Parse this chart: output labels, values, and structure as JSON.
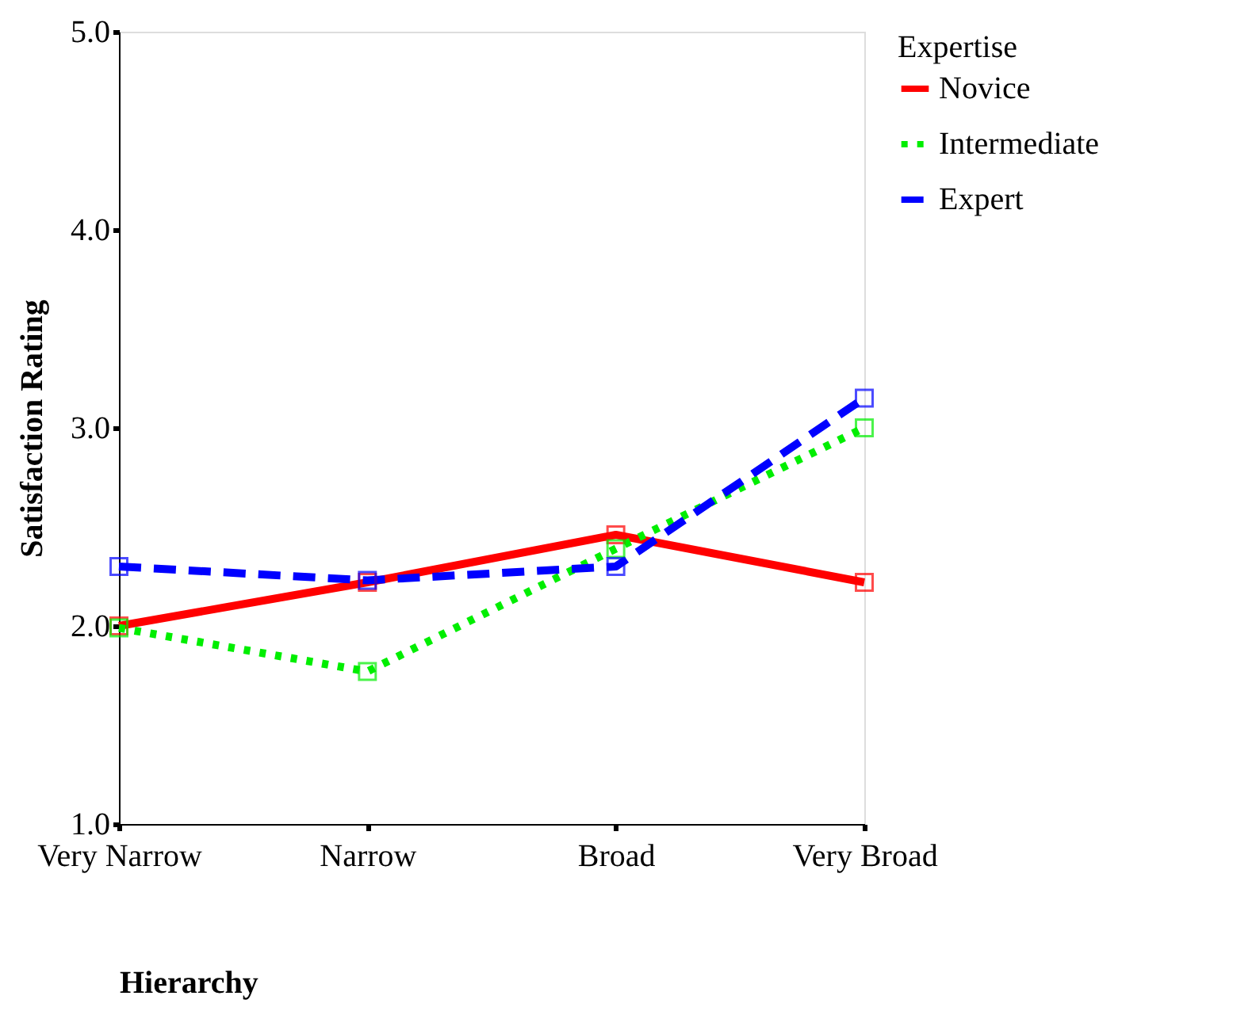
{
  "chart_data": {
    "type": "line",
    "xlabel": "Hierarchy",
    "ylabel": "Satisfaction Rating",
    "legend_title": "Expertise",
    "categories": [
      "Very Narrow",
      "Narrow",
      "Broad",
      "Very Broad"
    ],
    "series": [
      {
        "name": "Novice",
        "color": "#ff0000",
        "line_style": "solid",
        "values": [
          2.0,
          2.22,
          2.46,
          2.22
        ]
      },
      {
        "name": "Intermediate",
        "color": "#00ee00",
        "line_style": "dotted",
        "values": [
          1.99,
          1.77,
          2.39,
          3.0
        ]
      },
      {
        "name": "Expert",
        "color": "#0000ff",
        "line_style": "dashed",
        "values": [
          2.3,
          2.23,
          2.3,
          3.15
        ]
      }
    ],
    "ylim": [
      1.0,
      5.0
    ],
    "yticks": [
      {
        "value": 1,
        "label": "1.0"
      },
      {
        "value": 2,
        "label": "2.0"
      },
      {
        "value": 3,
        "label": "3.0"
      },
      {
        "value": 4,
        "label": "4.0"
      },
      {
        "value": 5,
        "label": "5.0"
      }
    ],
    "marker": "square",
    "legend": "right",
    "grid": false
  }
}
